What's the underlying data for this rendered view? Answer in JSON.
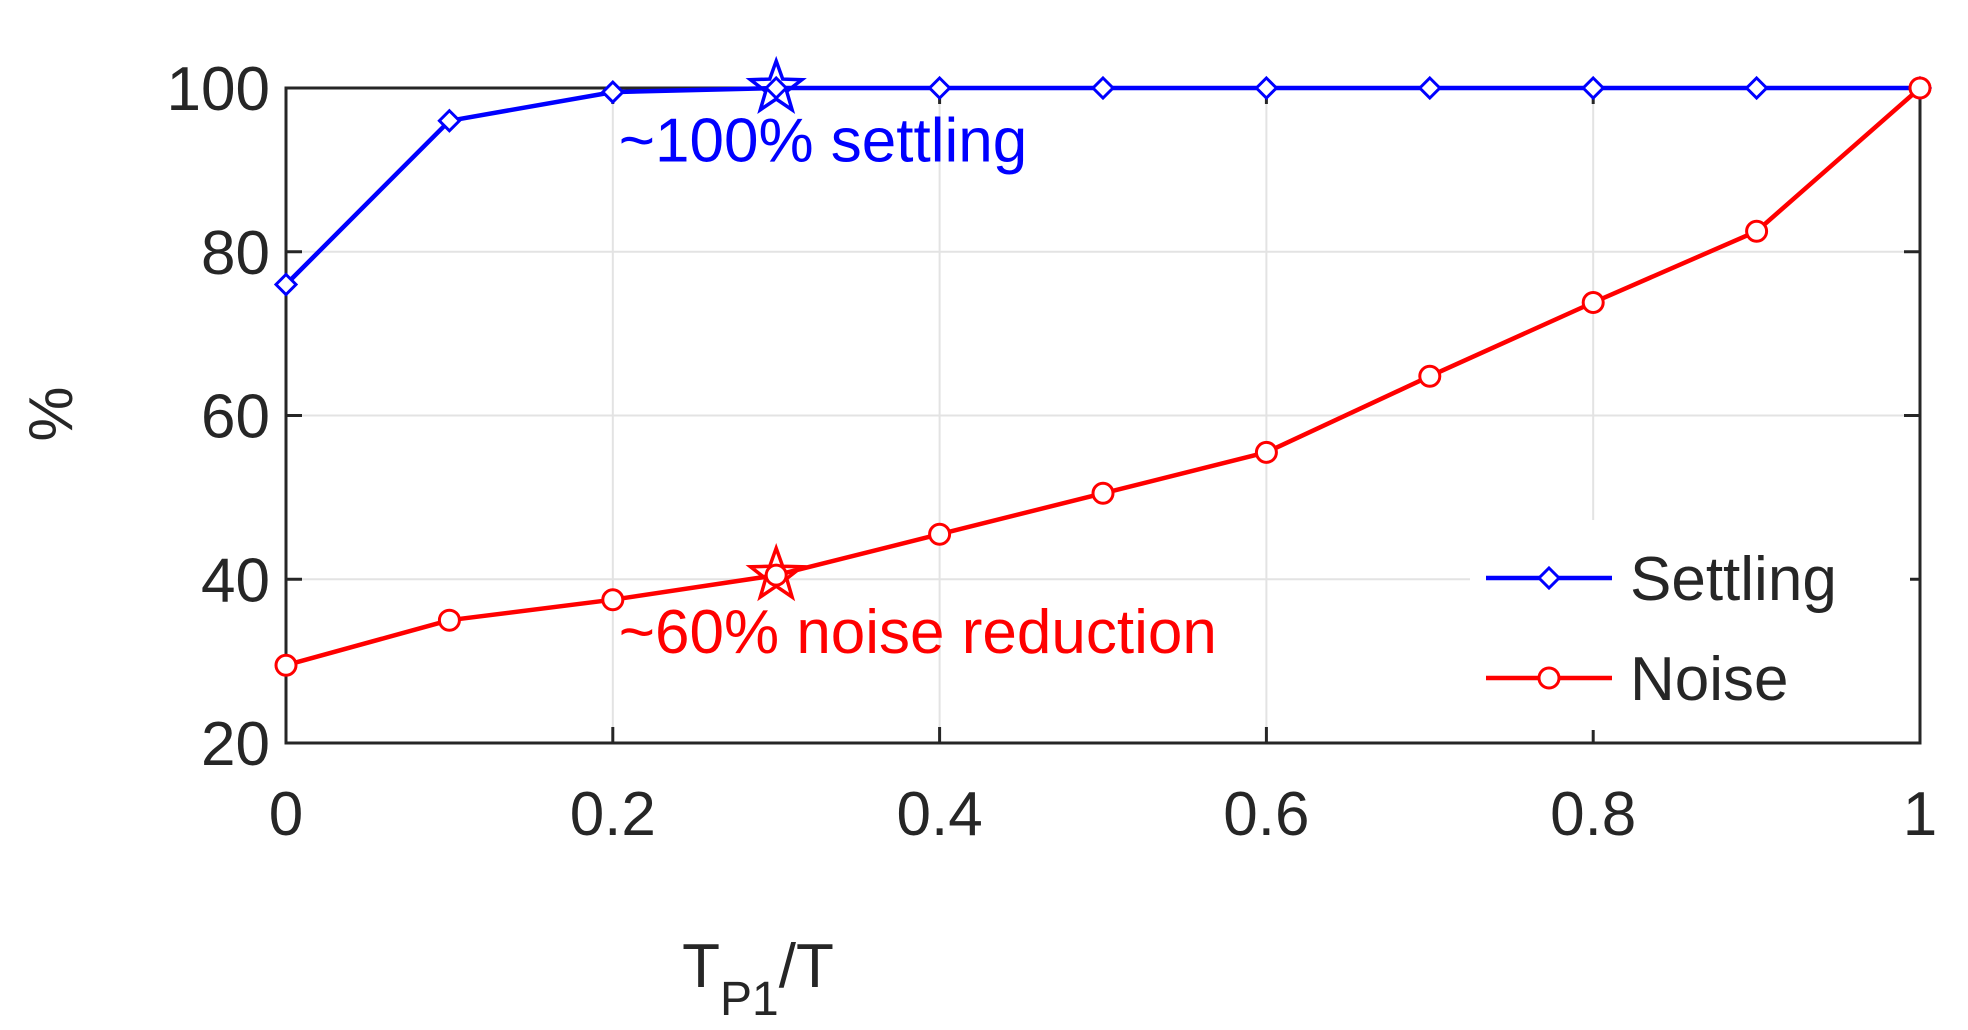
{
  "chart_data": {
    "type": "line",
    "title": "",
    "xlabel": {
      "main": "T",
      "sub": "P1",
      "suffix": "/T"
    },
    "ylabel": "%",
    "xlim": [
      0,
      1
    ],
    "ylim": [
      20,
      100
    ],
    "grid": true,
    "x": [
      0,
      0.1,
      0.2,
      0.3,
      0.4,
      0.5,
      0.6,
      0.7,
      0.8,
      0.9,
      1
    ],
    "x_ticks": [
      0,
      0.2,
      0.4,
      0.6,
      0.8,
      1
    ],
    "x_tick_labels": [
      "0",
      "0.2",
      "0.4",
      "0.6",
      "0.8",
      "1"
    ],
    "y_ticks": [
      20,
      40,
      60,
      80,
      100
    ],
    "y_tick_labels": [
      "20",
      "40",
      "60",
      "80",
      "100"
    ],
    "series": [
      {
        "name": "Settling",
        "color": "#0000ff",
        "marker": "diamond",
        "values": [
          76,
          96,
          99.5,
          100,
          100,
          100,
          100,
          100,
          100,
          100,
          100
        ]
      },
      {
        "name": "Noise",
        "color": "#ff0000",
        "marker": "circle",
        "values": [
          29.5,
          35,
          37.5,
          40.5,
          45.5,
          50.5,
          55.5,
          64.8,
          73.8,
          82.5,
          100
        ]
      }
    ],
    "highlights": [
      {
        "series": "Settling",
        "x": 0.3,
        "y": 100,
        "marker": "star",
        "color": "#0000ff"
      },
      {
        "series": "Noise",
        "x": 0.3,
        "y": 40.5,
        "marker": "star",
        "color": "#ff0000"
      }
    ],
    "annotations": [
      {
        "text": "~100% settling",
        "x": 0.2,
        "y": 91,
        "color": "#0000ff"
      },
      {
        "text": "~60% noise reduction",
        "x": 0.2,
        "y": 31,
        "color": "#ff0000"
      }
    ],
    "legend_position": "bottom-right"
  }
}
